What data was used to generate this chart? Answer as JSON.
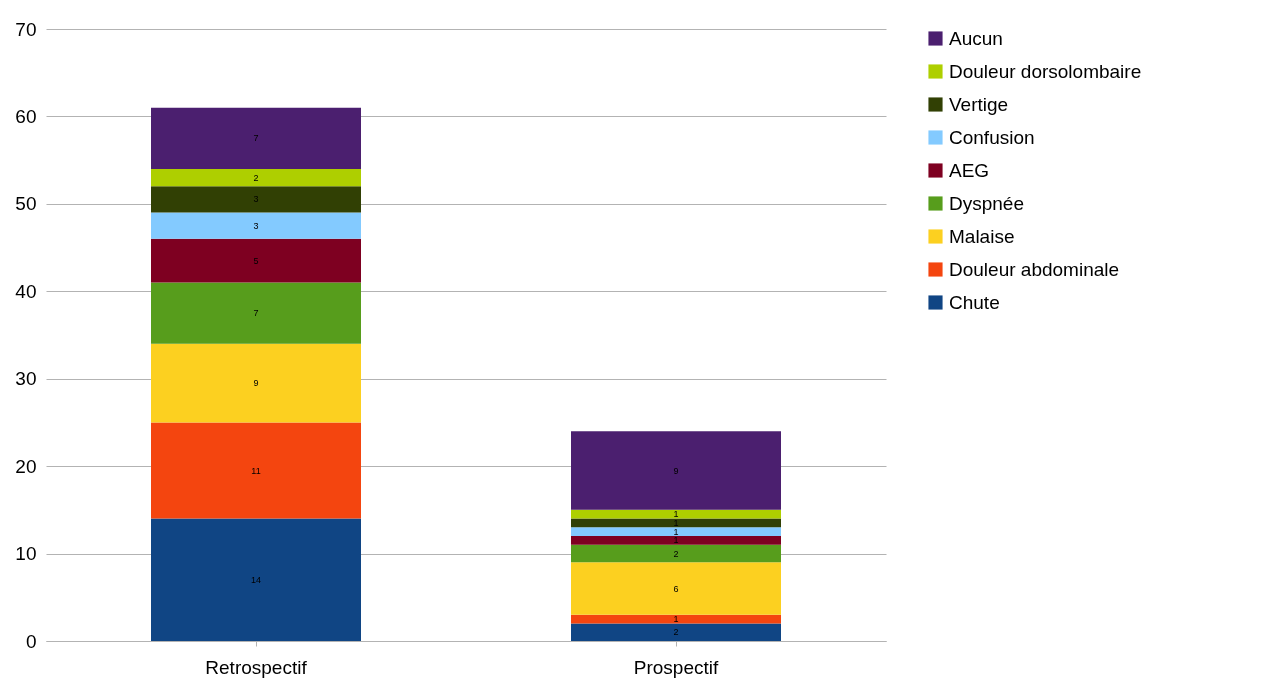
{
  "chart_data": {
    "type": "bar",
    "stacked": true,
    "categories": [
      "Retrospectif",
      "Prospectif"
    ],
    "series": [
      {
        "name": "Chute",
        "color": "#104584",
        "values": [
          14,
          2
        ]
      },
      {
        "name": "Douleur abdominale",
        "color": "#f4450f",
        "values": [
          11,
          1
        ]
      },
      {
        "name": "Malaise",
        "color": "#fcd020",
        "values": [
          9,
          6
        ]
      },
      {
        "name": "Dyspnée",
        "color": "#579d1c",
        "values": [
          7,
          2
        ]
      },
      {
        "name": "AEG",
        "color": "#7e0021",
        "values": [
          5,
          1
        ]
      },
      {
        "name": "Confusion",
        "color": "#83caff",
        "values": [
          3,
          1
        ]
      },
      {
        "name": "Vertige",
        "color": "#314004",
        "values": [
          3,
          1
        ]
      },
      {
        "name": "Douleur dorsolombaire",
        "color": "#aecf00",
        "values": [
          2,
          1
        ]
      },
      {
        "name": "Aucun",
        "color": "#4b1f6f",
        "values": [
          7,
          9
        ]
      }
    ],
    "ylim": [
      0,
      70
    ],
    "yticks": [
      0,
      10,
      20,
      30,
      40,
      50,
      60,
      70
    ],
    "grid": "y",
    "legend": "right",
    "data_labels": true
  }
}
